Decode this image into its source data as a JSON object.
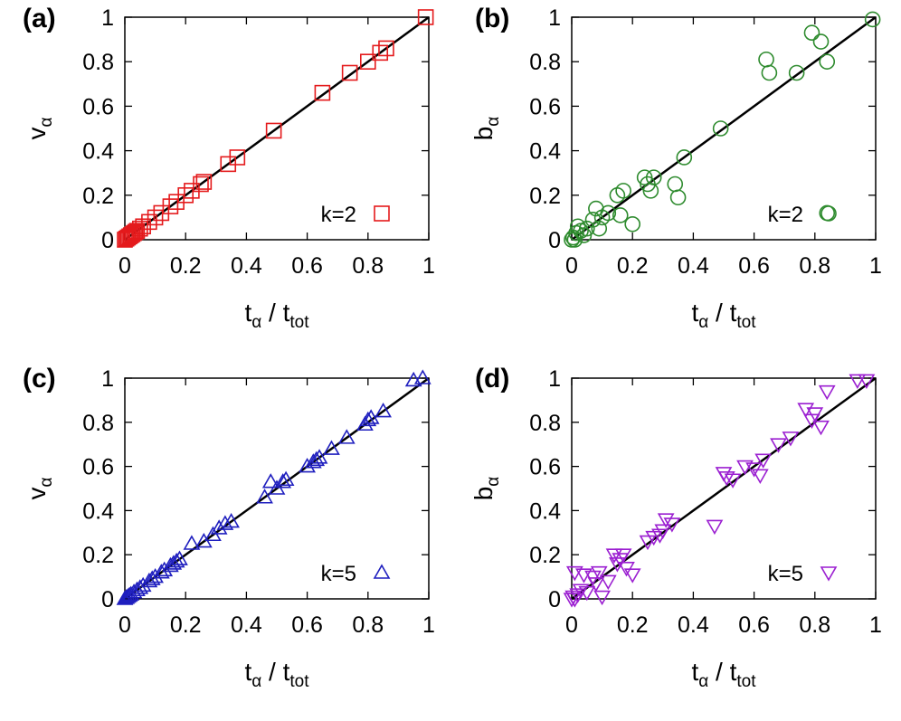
{
  "chart_data": [
    {
      "type": "scatter",
      "panel_label": "(a)",
      "xlabel": {
        "main": "t",
        "main_sub": "α",
        "sep": " / ",
        "den": "t",
        "den_sub": "tot"
      },
      "ylabel": {
        "main": "v",
        "main_sub": "α"
      },
      "xlim": [
        0,
        1
      ],
      "ylim": [
        0,
        1
      ],
      "xticks": [
        "0",
        "0.2",
        "0.4",
        "0.6",
        "0.8",
        "1"
      ],
      "yticks": [
        "0",
        "0.2",
        "0.4",
        "0.6",
        "0.8",
        "1"
      ],
      "grid": false,
      "legend_position": "bottom-right",
      "reference_line": {
        "from": [
          0,
          0
        ],
        "to": [
          1,
          1
        ],
        "color": "#000000"
      },
      "series": [
        {
          "name": "k=2",
          "marker": "square",
          "color": "#e41a1c",
          "points": [
            [
              0,
              0
            ],
            [
              0.005,
              0.005
            ],
            [
              0.01,
              0.01
            ],
            [
              0.015,
              0.015
            ],
            [
              0.02,
              0.02
            ],
            [
              0.025,
              0.025
            ],
            [
              0.03,
              0.03
            ],
            [
              0.035,
              0.035
            ],
            [
              0.04,
              0.04
            ],
            [
              0.05,
              0.05
            ],
            [
              0.06,
              0.06
            ],
            [
              0.08,
              0.08
            ],
            [
              0.1,
              0.1
            ],
            [
              0.12,
              0.12
            ],
            [
              0.15,
              0.15
            ],
            [
              0.17,
              0.17
            ],
            [
              0.2,
              0.2
            ],
            [
              0.22,
              0.22
            ],
            [
              0.25,
              0.25
            ],
            [
              0.26,
              0.26
            ],
            [
              0.34,
              0.34
            ],
            [
              0.37,
              0.37
            ],
            [
              0.49,
              0.49
            ],
            [
              0.65,
              0.66
            ],
            [
              0.74,
              0.75
            ],
            [
              0.8,
              0.8
            ],
            [
              0.84,
              0.84
            ],
            [
              0.86,
              0.86
            ],
            [
              0.99,
              1.0
            ]
          ]
        }
      ]
    },
    {
      "type": "scatter",
      "panel_label": "(b)",
      "xlabel": {
        "main": "t",
        "main_sub": "α",
        "sep": " / ",
        "den": "t",
        "den_sub": "tot"
      },
      "ylabel": {
        "main": "b",
        "main_sub": "α"
      },
      "xlim": [
        0,
        1
      ],
      "ylim": [
        0,
        1
      ],
      "xticks": [
        "0",
        "0.2",
        "0.4",
        "0.6",
        "0.8",
        "1"
      ],
      "yticks": [
        "0",
        "0.2",
        "0.4",
        "0.6",
        "0.8",
        "1"
      ],
      "grid": false,
      "legend_position": "bottom-right",
      "reference_line": {
        "from": [
          0,
          0
        ],
        "to": [
          1,
          1
        ],
        "color": "#000000"
      },
      "series": [
        {
          "name": "k=2",
          "marker": "circle",
          "color": "#2e8b2e",
          "points": [
            [
              0,
              0
            ],
            [
              0.005,
              0.01
            ],
            [
              0.01,
              0.0
            ],
            [
              0.015,
              0.03
            ],
            [
              0.02,
              0.06
            ],
            [
              0.03,
              0.04
            ],
            [
              0.04,
              0.02
            ],
            [
              0.05,
              0.05
            ],
            [
              0.07,
              0.09
            ],
            [
              0.08,
              0.14
            ],
            [
              0.09,
              0.05
            ],
            [
              0.1,
              0.1
            ],
            [
              0.12,
              0.12
            ],
            [
              0.15,
              0.2
            ],
            [
              0.17,
              0.22
            ],
            [
              0.16,
              0.11
            ],
            [
              0.2,
              0.07
            ],
            [
              0.24,
              0.28
            ],
            [
              0.25,
              0.25
            ],
            [
              0.26,
              0.22
            ],
            [
              0.27,
              0.28
            ],
            [
              0.34,
              0.25
            ],
            [
              0.35,
              0.19
            ],
            [
              0.37,
              0.37
            ],
            [
              0.49,
              0.5
            ],
            [
              0.64,
              0.81
            ],
            [
              0.65,
              0.75
            ],
            [
              0.74,
              0.75
            ],
            [
              0.79,
              0.93
            ],
            [
              0.82,
              0.89
            ],
            [
              0.84,
              0.8
            ],
            [
              0.84,
              0.12
            ],
            [
              0.99,
              0.99
            ]
          ]
        }
      ]
    },
    {
      "type": "scatter",
      "panel_label": "(c)",
      "xlabel": {
        "main": "t",
        "main_sub": "α",
        "sep": " / ",
        "den": "t",
        "den_sub": "tot"
      },
      "ylabel": {
        "main": "v",
        "main_sub": "α"
      },
      "xlim": [
        0,
        1
      ],
      "ylim": [
        0,
        1
      ],
      "xticks": [
        "0",
        "0.2",
        "0.4",
        "0.6",
        "0.8",
        "1"
      ],
      "yticks": [
        "0",
        "0.2",
        "0.4",
        "0.6",
        "0.8",
        "1"
      ],
      "grid": false,
      "legend_position": "bottom-right",
      "reference_line": {
        "from": [
          0,
          0
        ],
        "to": [
          1,
          1
        ],
        "color": "#000000"
      },
      "series": [
        {
          "name": "k=5",
          "marker": "triangle-up",
          "color": "#1f1fbf",
          "points": [
            [
              0,
              0
            ],
            [
              0.005,
              0.005
            ],
            [
              0.01,
              0.01
            ],
            [
              0.015,
              0.015
            ],
            [
              0.02,
              0.02
            ],
            [
              0.03,
              0.03
            ],
            [
              0.04,
              0.04
            ],
            [
              0.05,
              0.05
            ],
            [
              0.06,
              0.06
            ],
            [
              0.08,
              0.08
            ],
            [
              0.09,
              0.09
            ],
            [
              0.1,
              0.1
            ],
            [
              0.12,
              0.12
            ],
            [
              0.13,
              0.13
            ],
            [
              0.15,
              0.15
            ],
            [
              0.16,
              0.16
            ],
            [
              0.17,
              0.17
            ],
            [
              0.18,
              0.18
            ],
            [
              0.22,
              0.25
            ],
            [
              0.26,
              0.26
            ],
            [
              0.29,
              0.29
            ],
            [
              0.31,
              0.32
            ],
            [
              0.33,
              0.34
            ],
            [
              0.35,
              0.35
            ],
            [
              0.46,
              0.46
            ],
            [
              0.48,
              0.53
            ],
            [
              0.5,
              0.5
            ],
            [
              0.52,
              0.53
            ],
            [
              0.53,
              0.54
            ],
            [
              0.6,
              0.6
            ],
            [
              0.62,
              0.62
            ],
            [
              0.63,
              0.63
            ],
            [
              0.64,
              0.64
            ],
            [
              0.68,
              0.68
            ],
            [
              0.73,
              0.73
            ],
            [
              0.79,
              0.79
            ],
            [
              0.8,
              0.81
            ],
            [
              0.81,
              0.82
            ],
            [
              0.85,
              0.85
            ],
            [
              0.95,
              0.99
            ],
            [
              0.98,
              1.0
            ]
          ]
        }
      ]
    },
    {
      "type": "scatter",
      "panel_label": "(d)",
      "xlabel": {
        "main": "t",
        "main_sub": "α",
        "sep": " / ",
        "den": "t",
        "den_sub": "tot"
      },
      "ylabel": {
        "main": "b",
        "main_sub": "α"
      },
      "xlim": [
        0,
        1
      ],
      "ylim": [
        0,
        1
      ],
      "xticks": [
        "0",
        "0.2",
        "0.4",
        "0.6",
        "0.8",
        "1"
      ],
      "yticks": [
        "0",
        "0.2",
        "0.4",
        "0.6",
        "0.8",
        "1"
      ],
      "grid": false,
      "legend_position": "bottom-right",
      "reference_line": {
        "from": [
          0,
          0
        ],
        "to": [
          1,
          1
        ],
        "color": "#000000"
      },
      "series": [
        {
          "name": "k=5",
          "marker": "triangle-down",
          "color": "#9b1fd1",
          "points": [
            [
              0,
              0
            ],
            [
              0.005,
              0.01
            ],
            [
              0.01,
              0.0
            ],
            [
              0.01,
              0.12
            ],
            [
              0.02,
              0.02
            ],
            [
              0.03,
              0.04
            ],
            [
              0.04,
              0.11
            ],
            [
              0.05,
              0.03
            ],
            [
              0.07,
              0.1
            ],
            [
              0.08,
              0.07
            ],
            [
              0.09,
              0.12
            ],
            [
              0.1,
              0.01
            ],
            [
              0.12,
              0.08
            ],
            [
              0.14,
              0.2
            ],
            [
              0.15,
              0.16
            ],
            [
              0.16,
              0.18
            ],
            [
              0.17,
              0.2
            ],
            [
              0.18,
              0.14
            ],
            [
              0.2,
              0.11
            ],
            [
              0.25,
              0.26
            ],
            [
              0.27,
              0.28
            ],
            [
              0.29,
              0.29
            ],
            [
              0.3,
              0.31
            ],
            [
              0.31,
              0.36
            ],
            [
              0.33,
              0.34
            ],
            [
              0.47,
              0.33
            ],
            [
              0.5,
              0.57
            ],
            [
              0.51,
              0.55
            ],
            [
              0.53,
              0.54
            ],
            [
              0.57,
              0.6
            ],
            [
              0.6,
              0.59
            ],
            [
              0.62,
              0.56
            ],
            [
              0.63,
              0.63
            ],
            [
              0.68,
              0.7
            ],
            [
              0.72,
              0.73
            ],
            [
              0.77,
              0.86
            ],
            [
              0.79,
              0.81
            ],
            [
              0.8,
              0.84
            ],
            [
              0.82,
              0.78
            ],
            [
              0.84,
              0.94
            ],
            [
              0.94,
              0.99
            ],
            [
              0.97,
              0.99
            ]
          ]
        }
      ]
    }
  ]
}
